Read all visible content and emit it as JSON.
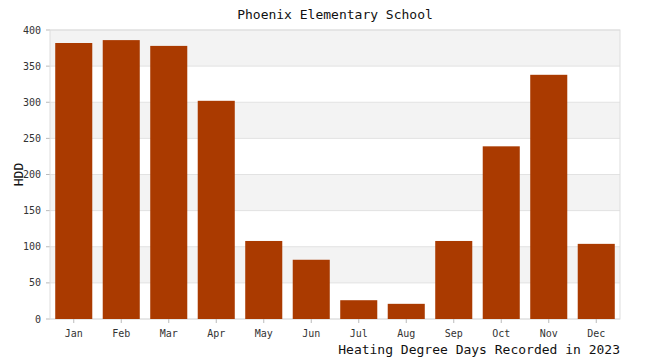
{
  "chart_data": {
    "type": "bar",
    "title": "Phoenix Elementary School",
    "xlabel": "Heating Degree Days Recorded in 2023",
    "ylabel": "HDD",
    "categories": [
      "Jan",
      "Feb",
      "Mar",
      "Apr",
      "May",
      "Jun",
      "Jul",
      "Aug",
      "Sep",
      "Oct",
      "Nov",
      "Dec"
    ],
    "values": [
      382,
      386,
      378,
      302,
      108,
      82,
      26,
      21,
      108,
      239,
      338,
      104
    ],
    "color": "#aa3a00",
    "ylim": [
      0,
      400
    ],
    "yticks": [
      0,
      50,
      100,
      150,
      200,
      250,
      300,
      350,
      400
    ],
    "grid": true
  }
}
